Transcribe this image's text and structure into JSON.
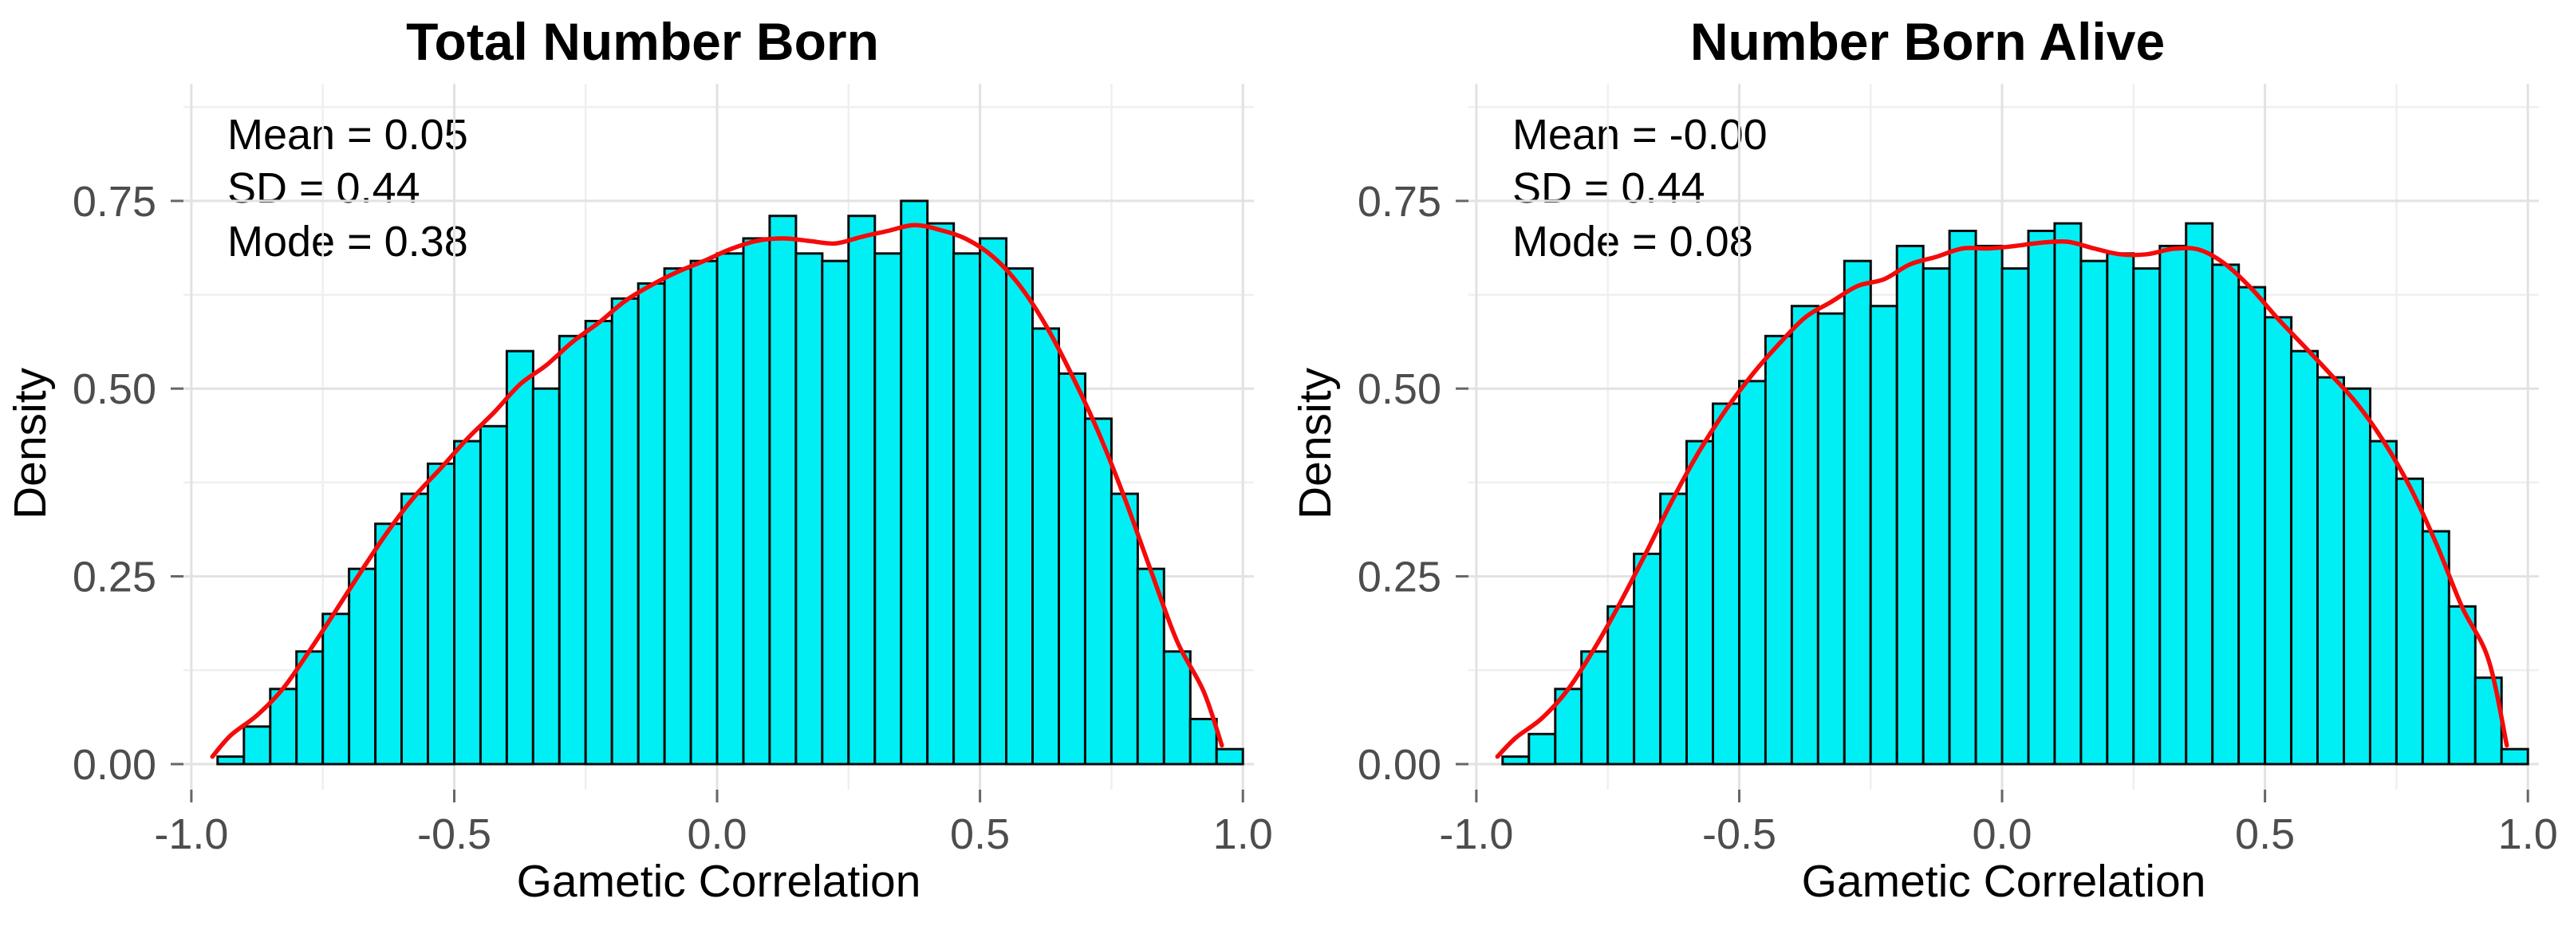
{
  "page": {
    "background": "#FFFFFF"
  },
  "colors": {
    "bar_fill": "#00EFF4",
    "bar_outline": "#0A0A0A",
    "curve": "#F50A0A",
    "grid_major": "#E2E2E2",
    "grid_minor": "#EFEFEF",
    "tick_mark": "#666666",
    "tick_label": "#4D4D4D",
    "text": "#000000"
  },
  "chart_data": [
    {
      "type": "bar",
      "subtype": "histogram-with-density-curve",
      "title": "Total Number Born",
      "annotation_lines": [
        "Mean = 0.05",
        "SD = 0.44",
        "Mode = 0.38"
      ],
      "xlabel": "Gametic Correlation",
      "ylabel": "Density",
      "xlim": [
        -1.015,
        1.021
      ],
      "ylim": [
        -0.034,
        0.906
      ],
      "x_ticks": {
        "values": [
          -1.0,
          -0.5,
          0.0,
          0.5,
          1.0
        ],
        "labels": [
          "-1.0",
          "-0.5",
          "0.0",
          "0.5",
          "1.0"
        ]
      },
      "y_ticks": {
        "values": [
          0.0,
          0.25,
          0.5,
          0.75
        ],
        "labels": [
          "0.00",
          "0.25",
          "0.50",
          "0.75"
        ]
      },
      "x_minor": [
        -0.75,
        -0.25,
        0.25,
        0.75
      ],
      "y_minor": [
        0.125,
        0.375,
        0.625,
        0.875
      ],
      "grid": true,
      "legend": "none",
      "bins": {
        "start": -0.95,
        "width": 0.05
      },
      "density": [
        0.01,
        0.05,
        0.1,
        0.15,
        0.2,
        0.26,
        0.32,
        0.36,
        0.4,
        0.43,
        0.45,
        0.55,
        0.5,
        0.57,
        0.59,
        0.62,
        0.64,
        0.66,
        0.67,
        0.68,
        0.7,
        0.73,
        0.68,
        0.67,
        0.73,
        0.68,
        0.75,
        0.72,
        0.68,
        0.7,
        0.66,
        0.58,
        0.52,
        0.46,
        0.36,
        0.26,
        0.15,
        0.06,
        0.02
      ],
      "curve_ends": [
        [
          -0.96,
          0.01
        ],
        [
          0.96,
          0.025
        ]
      ]
    },
    {
      "type": "bar",
      "subtype": "histogram-with-density-curve",
      "title": "Number Born Alive",
      "annotation_lines": [
        "Mean = -0.00",
        "SD = 0.44",
        "Mode = 0.08"
      ],
      "xlabel": "Gametic Correlation",
      "ylabel": "Density",
      "xlim": [
        -1.015,
        1.021
      ],
      "ylim": [
        -0.034,
        0.906
      ],
      "x_ticks": {
        "values": [
          -1.0,
          -0.5,
          0.0,
          0.5,
          1.0
        ],
        "labels": [
          "-1.0",
          "-0.5",
          "0.0",
          "0.5",
          "1.0"
        ]
      },
      "y_ticks": {
        "values": [
          0.0,
          0.25,
          0.5,
          0.75
        ],
        "labels": [
          "0.00",
          "0.25",
          "0.50",
          "0.75"
        ]
      },
      "x_minor": [
        -0.75,
        -0.25,
        0.25,
        0.75
      ],
      "y_minor": [
        0.125,
        0.375,
        0.625,
        0.875
      ],
      "grid": true,
      "legend": "none",
      "bins": {
        "start": -0.95,
        "width": 0.05
      },
      "density": [
        0.01,
        0.04,
        0.1,
        0.15,
        0.21,
        0.28,
        0.36,
        0.43,
        0.48,
        0.51,
        0.57,
        0.61,
        0.6,
        0.67,
        0.61,
        0.69,
        0.66,
        0.71,
        0.69,
        0.66,
        0.71,
        0.72,
        0.67,
        0.68,
        0.66,
        0.69,
        0.72,
        0.665,
        0.635,
        0.595,
        0.55,
        0.515,
        0.5,
        0.43,
        0.38,
        0.31,
        0.21,
        0.115,
        0.02
      ],
      "curve_ends": [
        [
          -0.96,
          0.01
        ],
        [
          0.96,
          0.025
        ]
      ]
    }
  ]
}
